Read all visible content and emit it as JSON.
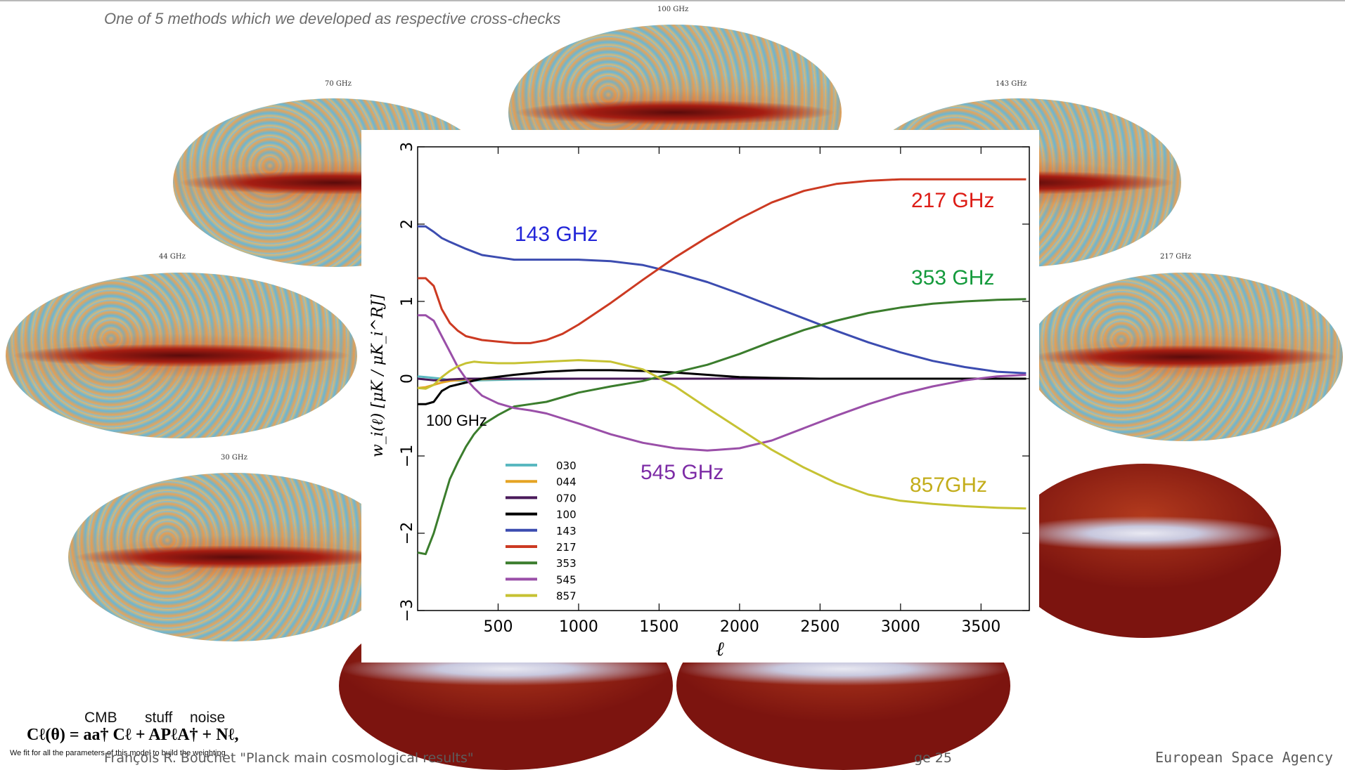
{
  "slide": {
    "subtitle": "One of 5 methods which we developed as respective cross-checks",
    "footer_text": "François R. Bouchet \"Planck main cosmological results\"",
    "page_label": "ge 25",
    "org": "European Space Agency"
  },
  "maps": {
    "m100": "100 GHz",
    "m70": "70 GHz",
    "m143": "143 GHz",
    "m44": "44 GHz",
    "m217": "217 GHz",
    "m30": "30 GHz"
  },
  "equation": {
    "head_cmb": "CMB",
    "head_stuff": "stuff",
    "head_noise": "noise",
    "formula": "Cℓ(θ) = aa† Cℓ + APℓA† + Nℓ,",
    "note": "We fit for all the parameters of this model to build the weighting"
  },
  "chart_data": {
    "type": "line",
    "xlabel": "ℓ",
    "ylabel": "w_i(ℓ) [μK / μK_i^RJ]",
    "xlim": [
      0,
      3800
    ],
    "ylim": [
      -3,
      3
    ],
    "xticks": [
      "500",
      "1000",
      "1500",
      "2000",
      "2500",
      "3000",
      "3500"
    ],
    "yticks": [
      "3",
      "2",
      "1",
      "0",
      "−1",
      "−2",
      "−3"
    ],
    "legend_position": "lower-left",
    "annotations": [
      {
        "text": "217 GHz",
        "color": "#dd1c16"
      },
      {
        "text": "143 GHz",
        "color": "#2225d8"
      },
      {
        "text": "353 GHz",
        "color": "#149a3c"
      },
      {
        "text": "100 GHz",
        "color": "#000000"
      },
      {
        "text": "545 GHz",
        "color": "#7d2ca6"
      },
      {
        "text": "857GHz",
        "color": "#c3ad1b"
      }
    ],
    "series": [
      {
        "name": "030",
        "color": "#5ab8c0",
        "x": [
          0,
          50,
          100,
          150,
          200,
          300,
          400,
          600,
          1000,
          2000,
          3000,
          3780
        ],
        "y": [
          0.03,
          0.02,
          0.01,
          0.0,
          -0.02,
          -0.03,
          -0.02,
          -0.01,
          0.0,
          0.0,
          0.0,
          0.0
        ]
      },
      {
        "name": "044",
        "color": "#e5a424",
        "x": [
          0,
          50,
          100,
          150,
          200,
          300,
          600,
          1000,
          2000,
          3000,
          3780
        ],
        "y": [
          -0.12,
          -0.11,
          -0.08,
          -0.05,
          -0.03,
          -0.01,
          0.0,
          0.0,
          0.0,
          0.0,
          0.0
        ]
      },
      {
        "name": "070",
        "color": "#4a1a5a",
        "x": [
          0,
          50,
          100,
          150,
          200,
          300,
          600,
          1000,
          2000,
          3000,
          3780
        ],
        "y": [
          0.0,
          -0.01,
          -0.02,
          -0.02,
          -0.01,
          0.0,
          0.0,
          0.0,
          0.0,
          0.0,
          0.0
        ]
      },
      {
        "name": "100",
        "color": "#000000",
        "x": [
          0,
          50,
          100,
          150,
          200,
          300,
          400,
          600,
          800,
          1000,
          1200,
          1400,
          1600,
          1800,
          2000,
          2200,
          2500,
          3000,
          3500,
          3780
        ],
        "y": [
          -0.33,
          -0.33,
          -0.3,
          -0.16,
          -0.1,
          -0.05,
          0.0,
          0.05,
          0.09,
          0.11,
          0.11,
          0.1,
          0.08,
          0.05,
          0.02,
          0.01,
          0.0,
          0.0,
          0.0,
          0.0
        ]
      },
      {
        "name": "143",
        "color": "#3c4cb0",
        "x": [
          0,
          50,
          100,
          150,
          200,
          300,
          400,
          500,
          600,
          700,
          800,
          1000,
          1200,
          1400,
          1600,
          1800,
          2000,
          2200,
          2400,
          2600,
          2800,
          3000,
          3200,
          3400,
          3600,
          3780
        ],
        "y": [
          1.97,
          1.97,
          1.9,
          1.82,
          1.77,
          1.68,
          1.6,
          1.57,
          1.54,
          1.54,
          1.54,
          1.54,
          1.52,
          1.47,
          1.37,
          1.25,
          1.1,
          0.94,
          0.78,
          0.62,
          0.47,
          0.34,
          0.23,
          0.15,
          0.09,
          0.07
        ]
      },
      {
        "name": "217",
        "color": "#cc3a22",
        "x": [
          0,
          50,
          100,
          150,
          200,
          250,
          300,
          400,
          500,
          600,
          700,
          800,
          900,
          1000,
          1200,
          1400,
          1600,
          1800,
          2000,
          2200,
          2400,
          2600,
          2800,
          3000,
          3200,
          3400,
          3600,
          3780
        ],
        "y": [
          1.3,
          1.3,
          1.2,
          0.9,
          0.72,
          0.62,
          0.55,
          0.5,
          0.48,
          0.46,
          0.46,
          0.5,
          0.58,
          0.7,
          0.98,
          1.28,
          1.57,
          1.83,
          2.07,
          2.28,
          2.43,
          2.52,
          2.56,
          2.58,
          2.58,
          2.58,
          2.58,
          2.58
        ]
      },
      {
        "name": "353",
        "color": "#3b7d2d",
        "x": [
          0,
          50,
          100,
          150,
          200,
          250,
          300,
          350,
          400,
          500,
          600,
          700,
          800,
          1000,
          1200,
          1400,
          1600,
          1800,
          2000,
          2200,
          2400,
          2600,
          2800,
          3000,
          3200,
          3400,
          3600,
          3780
        ],
        "y": [
          -2.25,
          -2.27,
          -2.0,
          -1.65,
          -1.3,
          -1.08,
          -0.88,
          -0.72,
          -0.6,
          -0.47,
          -0.36,
          -0.33,
          -0.3,
          -0.18,
          -0.1,
          -0.03,
          0.08,
          0.18,
          0.32,
          0.48,
          0.63,
          0.75,
          0.85,
          0.92,
          0.97,
          1.0,
          1.02,
          1.03
        ]
      },
      {
        "name": "545",
        "color": "#9a4fa8",
        "x": [
          0,
          50,
          100,
          150,
          200,
          250,
          300,
          350,
          400,
          500,
          600,
          700,
          800,
          1000,
          1200,
          1400,
          1600,
          1800,
          2000,
          2200,
          2400,
          2600,
          2800,
          3000,
          3200,
          3400,
          3600,
          3780
        ],
        "y": [
          0.82,
          0.82,
          0.75,
          0.55,
          0.35,
          0.15,
          0.0,
          -0.12,
          -0.22,
          -0.32,
          -0.38,
          -0.41,
          -0.45,
          -0.58,
          -0.72,
          -0.83,
          -0.9,
          -0.93,
          -0.9,
          -0.8,
          -0.64,
          -0.48,
          -0.33,
          -0.2,
          -0.1,
          -0.02,
          0.03,
          0.05
        ]
      },
      {
        "name": "857",
        "color": "#c6c233",
        "x": [
          0,
          50,
          100,
          150,
          200,
          250,
          300,
          350,
          400,
          500,
          600,
          700,
          800,
          1000,
          1200,
          1400,
          1600,
          1800,
          2000,
          2200,
          2400,
          2600,
          2800,
          3000,
          3200,
          3400,
          3600,
          3780
        ],
        "y": [
          -0.12,
          -0.13,
          -0.08,
          0.02,
          0.1,
          0.16,
          0.2,
          0.22,
          0.21,
          0.2,
          0.2,
          0.21,
          0.22,
          0.24,
          0.22,
          0.12,
          -0.1,
          -0.38,
          -0.65,
          -0.92,
          -1.15,
          -1.35,
          -1.5,
          -1.58,
          -1.62,
          -1.65,
          -1.67,
          -1.68
        ]
      }
    ]
  }
}
